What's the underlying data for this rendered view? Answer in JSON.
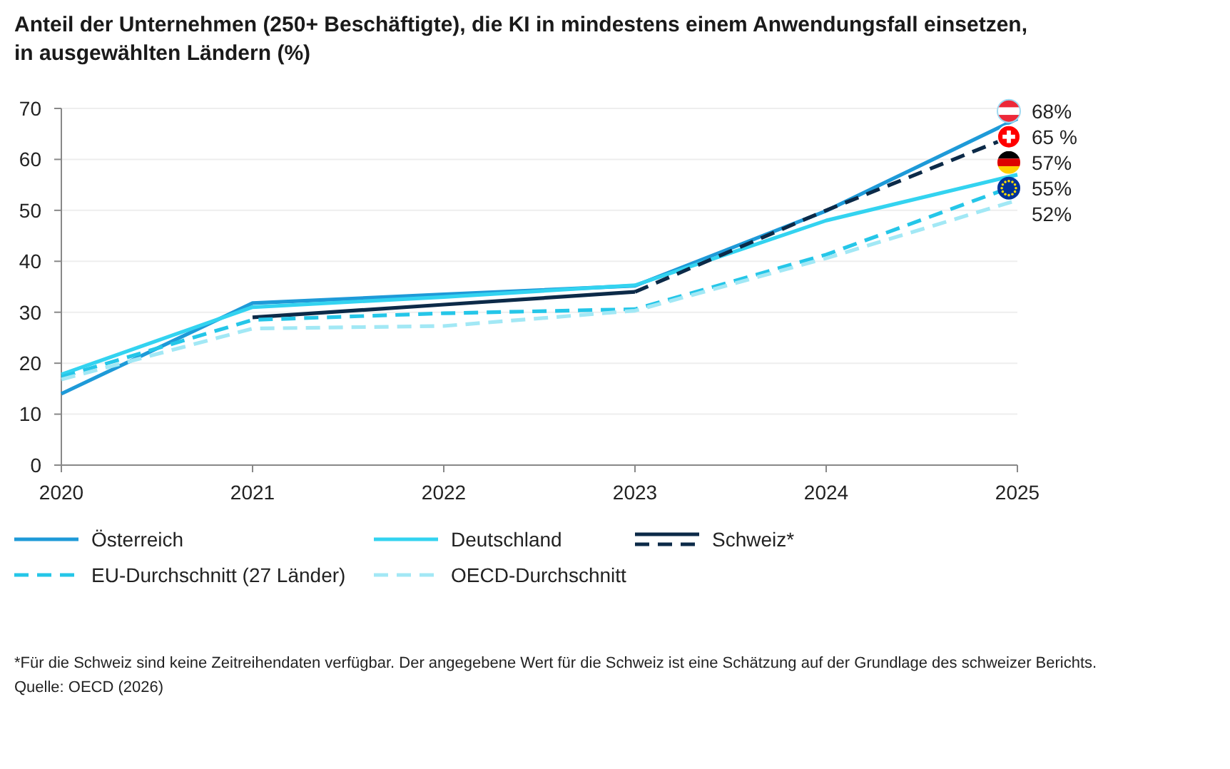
{
  "chart_data": {
    "type": "line",
    "title": "Anteil der Unternehmen (250+ Beschäftigte), die KI in mindestens einem Anwendungsfall einsetzen,\nin ausgewählten Ländern (%)",
    "x": [
      2020,
      2021,
      2022,
      2023,
      2024,
      2025
    ],
    "xlim": [
      2020,
      2025
    ],
    "xticks": [
      2020,
      2021,
      2022,
      2023,
      2024,
      2025
    ],
    "ylim": [
      0,
      70
    ],
    "yticks": [
      0,
      10,
      20,
      30,
      40,
      50,
      60,
      70
    ],
    "grid": "y",
    "legend": "bottom",
    "line_style": "solid",
    "series": [
      {
        "name": "Österreich",
        "color": "#1e9ad8",
        "values": [
          14,
          31.8,
          33.5,
          35.2,
          49.9,
          68
        ],
        "value_labels": [
          null,
          null,
          null,
          null,
          null,
          "68%"
        ]
      },
      {
        "name": "Deutschland",
        "color": "#33d3f0",
        "values": [
          17.8,
          31,
          33,
          35.3,
          48,
          57
        ],
        "value_labels": [
          null,
          null,
          null,
          null,
          null,
          "57%"
        ]
      },
      {
        "name": "Schweiz*",
        "color": "#0c2a48",
        "values": [
          null,
          29,
          31.5,
          34,
          null,
          null
        ]
      },
      {
        "color": "#0c2a48",
        "line_style": "dashed",
        "values": [
          null,
          null,
          null,
          34,
          50,
          65
        ],
        "value_labels": [
          null,
          null,
          null,
          null,
          null,
          "65 %"
        ]
      },
      {
        "name": "EU-Durchschnitt (27 Länder)",
        "color": "#25c6e8",
        "line_style": "dashed",
        "values": [
          17.3,
          28.5,
          29.8,
          30.6,
          41.3,
          55
        ],
        "value_labels": [
          null,
          null,
          null,
          null,
          null,
          "55%"
        ]
      },
      {
        "name": "OECD-Durchschnitt",
        "color": "#a2e8f5",
        "line_style": "dashed",
        "values": [
          16.8,
          26.8,
          27.3,
          30.3,
          40.6,
          52
        ],
        "value_labels": [
          null,
          null,
          null,
          null,
          null,
          "52%"
        ]
      }
    ],
    "annotations": [
      "*Für die Schweiz sind keine Zeitreihendaten verfügbar. Der angegebene Wert für die Schweiz ist eine Schätzung auf der Grundlage des schweizer Berichts.",
      "Quelle: OECD (2026)"
    ]
  }
}
